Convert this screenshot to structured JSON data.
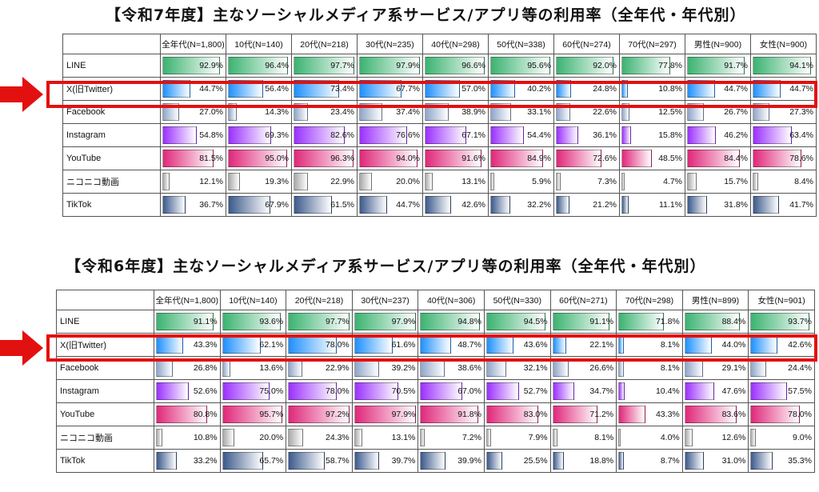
{
  "chart_data": [
    {
      "type": "table",
      "title": "【令和7年度】主なソーシャルメディア系サービス/アプリ等の利用率（全年代・年代別）",
      "columns": [
        "全年代(N=1,800)",
        "10代(N=140)",
        "20代(N=218)",
        "30代(N=235)",
        "40代(N=298)",
        "50代(N=338)",
        "60代(N=274)",
        "70代(N=297)",
        "男性(N=900)",
        "女性(N=900)"
      ],
      "highlighted_row": "X(旧Twitter)",
      "series": [
        {
          "name": "LINE",
          "color": "#3cb371",
          "values": [
            92.9,
            96.4,
            97.7,
            97.9,
            96.6,
            95.6,
            92.0,
            77.8,
            91.7,
            94.1
          ]
        },
        {
          "name": "X(旧Twitter)",
          "color": "#1e90ff",
          "values": [
            44.7,
            56.4,
            73.4,
            67.7,
            57.0,
            40.2,
            24.8,
            10.8,
            44.7,
            44.7
          ]
        },
        {
          "name": "Facebook",
          "color": "#8fa5c8",
          "values": [
            27.0,
            14.3,
            23.4,
            37.4,
            38.9,
            33.1,
            22.6,
            12.5,
            26.7,
            27.3
          ]
        },
        {
          "name": "Instagram",
          "color": "#9b30ff",
          "values": [
            54.8,
            69.3,
            82.6,
            76.6,
            67.1,
            54.4,
            36.1,
            15.8,
            46.2,
            63.4
          ]
        },
        {
          "name": "YouTube",
          "color": "#e0287a",
          "values": [
            81.5,
            95.0,
            96.3,
            94.0,
            91.6,
            84.9,
            72.6,
            48.5,
            84.4,
            78.6
          ]
        },
        {
          "name": "ニコニコ動画",
          "color": "#a9a9a9",
          "values": [
            12.1,
            19.3,
            22.9,
            20.0,
            13.1,
            5.9,
            7.3,
            4.7,
            15.7,
            8.4
          ]
        },
        {
          "name": "TikTok",
          "color": "#3c5a8c",
          "values": [
            36.7,
            67.9,
            61.5,
            44.7,
            42.6,
            32.2,
            21.2,
            11.1,
            31.8,
            41.7
          ]
        }
      ]
    },
    {
      "type": "table",
      "title": "【令和6年度】主なソーシャルメディア系サービス/アプリ等の利用率（全年代・年代別）",
      "columns": [
        "全年代(N=1,800)",
        "10代(N=140)",
        "20代(N=218)",
        "30代(N=237)",
        "40代(N=306)",
        "50代(N=330)",
        "60代(N=271)",
        "70代(N=298)",
        "男性(N=899)",
        "女性(N=901)"
      ],
      "highlighted_row": "X(旧Twitter)",
      "series": [
        {
          "name": "LINE",
          "color": "#3cb371",
          "values": [
            91.1,
            93.6,
            97.7,
            97.9,
            94.8,
            94.5,
            91.1,
            71.8,
            88.4,
            93.7
          ]
        },
        {
          "name": "X(旧Twitter)",
          "color": "#1e90ff",
          "values": [
            43.3,
            62.1,
            78.0,
            61.6,
            48.7,
            43.6,
            22.1,
            8.1,
            44.0,
            42.6
          ]
        },
        {
          "name": "Facebook",
          "color": "#8fa5c8",
          "values": [
            26.8,
            13.6,
            22.9,
            39.2,
            38.6,
            32.1,
            26.6,
            8.1,
            29.1,
            24.4
          ]
        },
        {
          "name": "Instagram",
          "color": "#9b30ff",
          "values": [
            52.6,
            75.0,
            78.0,
            70.5,
            67.0,
            52.7,
            34.7,
            10.4,
            47.6,
            57.5
          ]
        },
        {
          "name": "YouTube",
          "color": "#e0287a",
          "values": [
            80.8,
            95.7,
            97.2,
            97.9,
            91.8,
            83.0,
            71.2,
            43.3,
            83.6,
            78.0
          ]
        },
        {
          "name": "ニコニコ動画",
          "color": "#a9a9a9",
          "values": [
            10.8,
            20.0,
            24.3,
            13.1,
            7.2,
            7.9,
            8.1,
            4.0,
            12.6,
            9.0
          ]
        },
        {
          "name": "TikTok",
          "color": "#3c5a8c",
          "values": [
            33.2,
            65.7,
            58.7,
            39.7,
            39.9,
            25.5,
            18.8,
            8.7,
            31.0,
            35.3
          ]
        }
      ]
    }
  ]
}
